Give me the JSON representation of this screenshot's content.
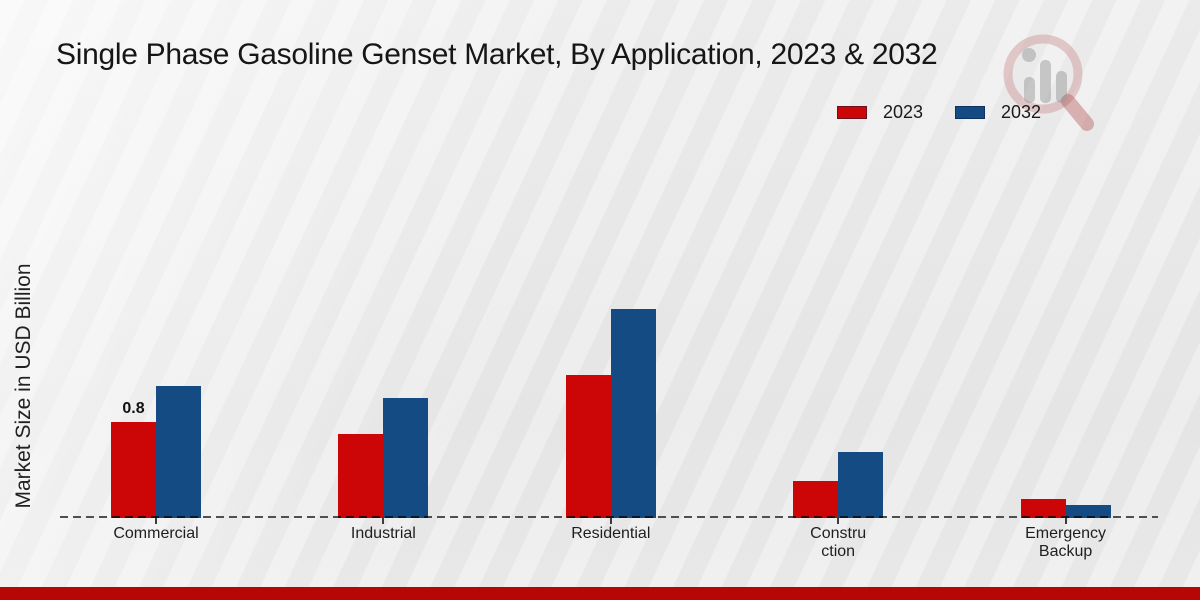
{
  "title": "Single Phase Gasoline Genset Market, By Application, 2023 & 2032",
  "ylabel": "Market Size in USD Billion",
  "legend": {
    "position": "top-right",
    "items": [
      {
        "label": "2023",
        "color": "#cc0606"
      },
      {
        "label": "2032",
        "color": "#134b82"
      }
    ]
  },
  "watermark": {
    "icon": "magnifier-bar-chart-logo"
  },
  "theme": {
    "background": "#ebebeb",
    "footer_bar_color": "#b70606",
    "baseline_color": "#4f4f4f",
    "text_color": "#1a1a1a"
  },
  "chart_data": {
    "type": "bar",
    "title": "Single Phase Gasoline Genset Market, By Application, 2023 & 2032",
    "xlabel": "",
    "ylabel": "Market Size in USD Billion",
    "categories": [
      "Commercial",
      "Industrial",
      "Residential",
      "Construction",
      "Emergency Backup"
    ],
    "category_label_lines": [
      [
        "Commercial"
      ],
      [
        "Industrial"
      ],
      [
        "Residential"
      ],
      [
        "Constru",
        "ction"
      ],
      [
        "Emergency",
        "Backup"
      ]
    ],
    "series": [
      {
        "name": "2023",
        "color": "#cc0606",
        "values": [
          0.8,
          0.7,
          1.2,
          0.3,
          0.15
        ]
      },
      {
        "name": "2032",
        "color": "#134b82",
        "values": [
          1.1,
          1.0,
          1.75,
          0.55,
          0.1
        ]
      }
    ],
    "bar_labels": [
      {
        "series": "2023",
        "category": "Commercial",
        "text": "0.8"
      }
    ],
    "ylim": [
      0,
      2
    ],
    "grid": false,
    "baseline_style": "dashed",
    "legend_position": "top-right"
  }
}
